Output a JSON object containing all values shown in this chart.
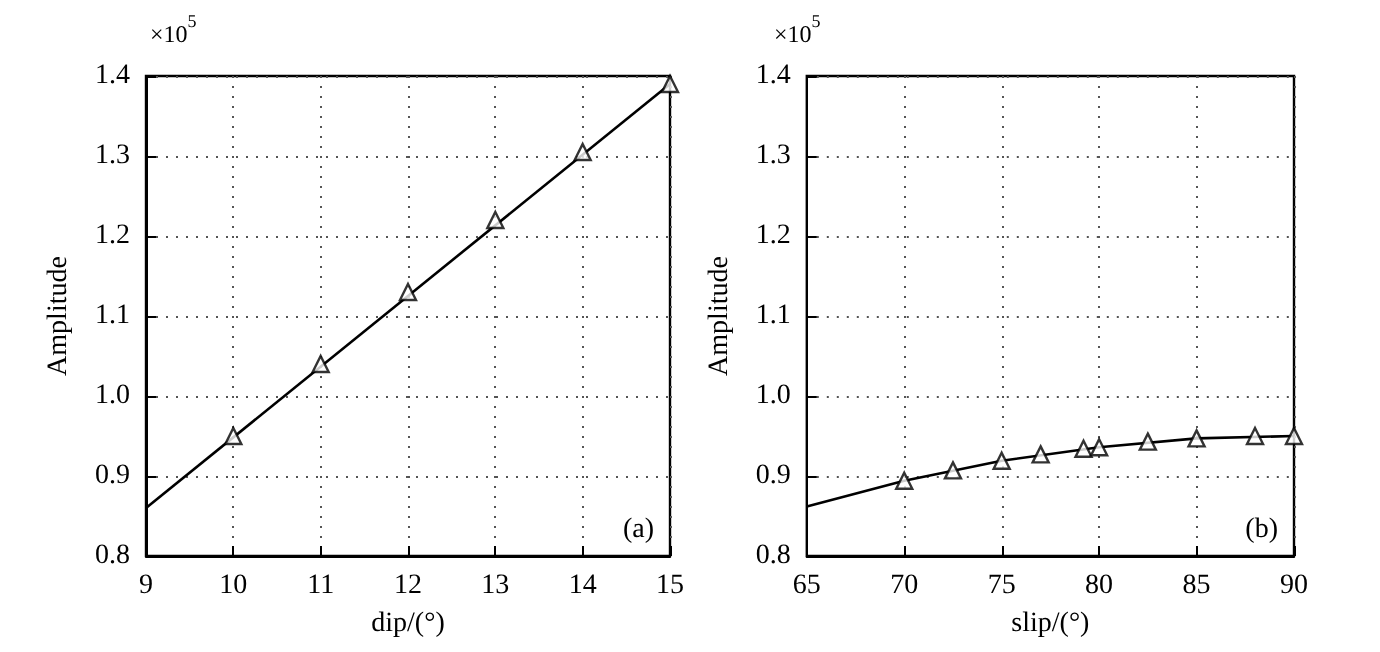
{
  "chart_data": [
    {
      "type": "line",
      "xlabel": "dip/(°)",
      "ylabel": "Amplitude",
      "annotations": [
        "×10$^{5}$",
        "(a)"
      ],
      "xlim": [
        9,
        15
      ],
      "xticks": [
        9,
        10,
        11,
        12,
        13,
        14,
        15
      ],
      "ylim": [
        0.8,
        1.4
      ],
      "yticks": [
        0.8,
        0.9,
        {
          "value": 1.0,
          "label": "1.0"
        },
        1.1,
        1.2,
        1.3,
        1.4
      ],
      "grid": true,
      "series": [
        {
          "color": "#000000",
          "marker": "none",
          "x": [
            9,
            15
          ],
          "values": [
            0.86,
            1.39
          ]
        },
        {
          "type": "scatter",
          "marker": "triangle",
          "color": "#000000",
          "x": [
            10,
            11,
            12,
            13,
            14,
            15
          ],
          "values": [
            0.95,
            1.04,
            1.13,
            1.22,
            1.305,
            1.39
          ]
        }
      ]
    },
    {
      "type": "line",
      "xlabel": "slip/(°)",
      "ylabel": "Amplitude",
      "annotations": [
        "×10$^{5}$",
        "(b)"
      ],
      "xlim": [
        65,
        90
      ],
      "xticks": [
        65,
        70,
        75,
        80,
        85,
        90
      ],
      "ylim": [
        0.8,
        1.4
      ],
      "yticks": [
        0.8,
        0.9,
        {
          "value": 1.0,
          "label": "1.0"
        },
        1.1,
        1.2,
        1.3,
        1.4
      ],
      "grid": true,
      "series": [
        {
          "color": "#000000",
          "marker": "none",
          "x": [
            65,
            70,
            75,
            80,
            85,
            90
          ],
          "values": [
            0.862,
            0.894,
            0.919,
            0.936,
            0.947,
            0.95
          ]
        },
        {
          "type": "scatter",
          "marker": "triangle",
          "color": "#000000",
          "x": [
            70,
            72.5,
            75,
            77,
            79.2,
            80,
            82.5,
            85,
            88,
            90
          ],
          "values": [
            0.894,
            0.907,
            0.919,
            0.927,
            0.934,
            0.936,
            0.943,
            0.947,
            0.95,
            0.95
          ]
        }
      ]
    }
  ]
}
